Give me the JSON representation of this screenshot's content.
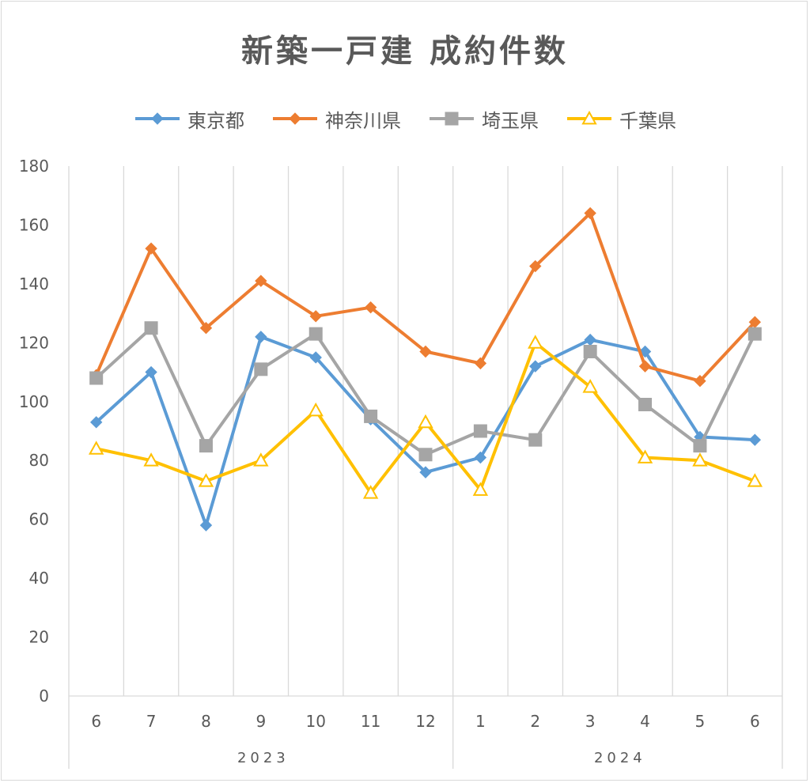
{
  "title": "新築一戸建 成約件数",
  "colors": {
    "grid": "#d9d9d9",
    "text": "#595959"
  },
  "chart_data": {
    "type": "line",
    "title": "新築一戸建 成約件数",
    "xlabel": "",
    "ylabel": "",
    "ylim": [
      0,
      180
    ],
    "yticks": [
      0,
      20,
      40,
      60,
      80,
      100,
      120,
      140,
      160,
      180
    ],
    "categories": [
      "6",
      "7",
      "8",
      "9",
      "10",
      "11",
      "12",
      "1",
      "2",
      "3",
      "4",
      "5",
      "6"
    ],
    "groups": [
      {
        "label": "2023",
        "span": 7
      },
      {
        "label": "2024",
        "span": 6
      }
    ],
    "grid": "vertical",
    "legend_position": "top",
    "series": [
      {
        "name": "東京都",
        "color": "#5b9bd5",
        "marker": "diamond",
        "values": [
          93,
          110,
          58,
          122,
          115,
          94,
          76,
          81,
          112,
          121,
          117,
          88,
          87
        ]
      },
      {
        "name": "神奈川県",
        "color": "#ed7d31",
        "marker": "diamond",
        "values": [
          109,
          152,
          125,
          141,
          129,
          132,
          117,
          113,
          146,
          164,
          112,
          107,
          127
        ]
      },
      {
        "name": "埼玉県",
        "color": "#a5a5a5",
        "marker": "square",
        "values": [
          108,
          125,
          85,
          111,
          123,
          95,
          82,
          90,
          87,
          117,
          99,
          85,
          123
        ]
      },
      {
        "name": "千葉県",
        "color": "#ffc000",
        "marker": "triangle",
        "values": [
          84,
          80,
          73,
          80,
          97,
          69,
          93,
          70,
          120,
          105,
          81,
          80,
          73
        ]
      }
    ]
  }
}
